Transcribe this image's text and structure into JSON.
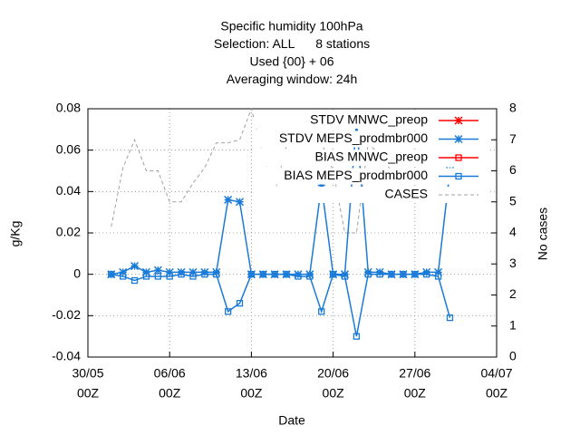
{
  "chart_data": {
    "type": "line",
    "title": [
      "Specific humidity 100hPa",
      "Selection: ALL      8 stations",
      "Used {00} + 06",
      "Averaging window: 24h"
    ],
    "xlabel": "Date",
    "ylabel": "g/Kg",
    "y2label": "No cases",
    "x": [
      "01/06",
      "02/06",
      "03/06",
      "04/06",
      "05/06",
      "06/06",
      "07/06",
      "08/06",
      "09/06",
      "10/06",
      "11/06",
      "12/06",
      "13/06",
      "14/06",
      "15/06",
      "16/06",
      "17/06",
      "18/06",
      "19/06",
      "20/06",
      "21/06",
      "22/06",
      "23/06",
      "24/06",
      "25/06",
      "26/06",
      "27/06",
      "28/06",
      "29/06",
      "30/06"
    ],
    "xlim": [
      "30/05",
      "04/07"
    ],
    "xticks": [
      {
        "value": "30/05",
        "label": [
          "30/05",
          "00Z"
        ]
      },
      {
        "value": "06/06",
        "label": [
          "06/06",
          "00Z"
        ]
      },
      {
        "value": "13/06",
        "label": [
          "13/06",
          "00Z"
        ]
      },
      {
        "value": "20/06",
        "label": [
          "20/06",
          "00Z"
        ]
      },
      {
        "value": "27/06",
        "label": [
          "27/06",
          "00Z"
        ]
      },
      {
        "value": "04/07",
        "label": [
          "04/07",
          "00Z"
        ]
      }
    ],
    "ylim": [
      -0.04,
      0.08
    ],
    "yticks": [
      -0.04,
      -0.02,
      0,
      0.02,
      0.04,
      0.06,
      0.08
    ],
    "y2lim": [
      0,
      8
    ],
    "y2ticks": [
      0,
      1,
      2,
      3,
      4,
      5,
      6,
      7,
      8
    ],
    "grid": true,
    "legend": "top-right",
    "series": [
      {
        "name": "STDV MNWC_preop",
        "color": "#ff0000",
        "marker": "star",
        "values": [
          null,
          null,
          null,
          null,
          null,
          null,
          null,
          null,
          null,
          null,
          null,
          null,
          null,
          null,
          null,
          null,
          null,
          null,
          null,
          null,
          null,
          null,
          null,
          null,
          null,
          null,
          null,
          null,
          null,
          null
        ]
      },
      {
        "name": "STDV MEPS_prodmbr000",
        "color": "#1a7ad8",
        "marker": "star",
        "values": [
          0.0,
          0.001,
          0.004,
          0.001,
          0.002,
          0.001,
          0.001,
          0.001,
          0.001,
          0.001,
          0.036,
          0.035,
          0.0,
          0.0,
          0.0,
          0.0,
          0.0,
          0.0,
          0.043,
          0.0,
          0.0,
          0.074,
          0.001,
          0.001,
          0.0,
          0.0,
          0.0,
          0.001,
          0.001,
          0.05
        ]
      },
      {
        "name": "BIAS MNWC_preop",
        "color": "#ff0000",
        "marker": "square",
        "values": [
          null,
          null,
          null,
          null,
          null,
          null,
          null,
          null,
          null,
          null,
          null,
          null,
          null,
          null,
          null,
          null,
          null,
          null,
          null,
          null,
          null,
          null,
          null,
          null,
          null,
          null,
          null,
          null,
          null,
          null
        ]
      },
      {
        "name": "BIAS MEPS_prodmbr000",
        "color": "#1a7ad8",
        "marker": "square",
        "values": [
          0.0,
          -0.001,
          -0.003,
          -0.001,
          -0.001,
          -0.001,
          0.0,
          -0.001,
          0.0,
          0.0,
          -0.018,
          -0.014,
          0.0,
          0.0,
          0.0,
          0.0,
          -0.001,
          -0.001,
          -0.018,
          0.0,
          -0.001,
          -0.03,
          0.0,
          0.0,
          0.0,
          0.0,
          0.0,
          0.0,
          -0.001,
          -0.021
        ]
      },
      {
        "name": "CASES",
        "color": "#a0a0a0",
        "dash": true,
        "axis": "y2",
        "values": [
          4.2,
          6.1,
          7.0,
          6.0,
          6.0,
          5.0,
          5.0,
          5.6,
          6.1,
          6.9,
          6.9,
          7.0,
          8.0,
          6.5,
          5.3,
          6.8,
          6.9,
          6.8,
          6.9,
          6.0,
          4.0,
          4.0,
          6.9,
          6.5,
          6.0,
          5.5,
          5.0,
          5.0,
          5.3,
          5.3
        ]
      }
    ]
  }
}
